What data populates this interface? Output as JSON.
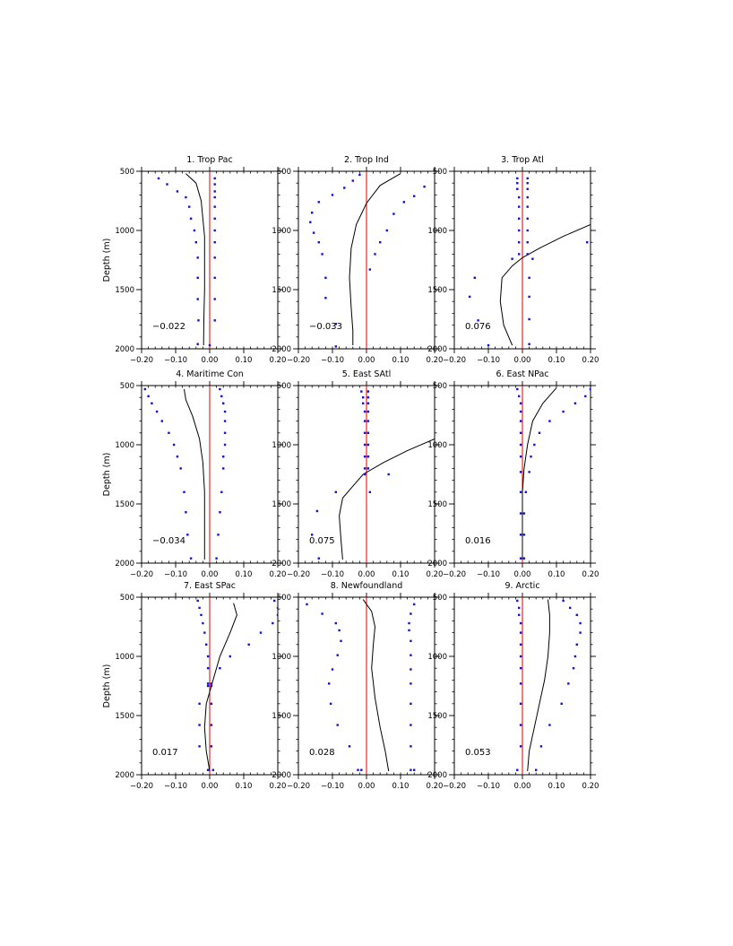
{
  "chart_data": [
    {
      "type": "line",
      "title": "1. Trop Pac",
      "ylabel": "Depth (m)",
      "value_label": "−0.022",
      "xlim": [
        -0.2,
        0.2
      ],
      "ylim": [
        2000,
        500
      ],
      "y_inverted": true,
      "xticks": [
        "−0.20",
        "−0.10",
        "0.00",
        "0.10",
        "0.20"
      ],
      "yticks": [
        "500",
        "1000",
        "1500",
        "2000"
      ],
      "profile": {
        "x": [
          -0.07,
          -0.04,
          -0.025,
          -0.02,
          -0.015,
          -0.015,
          -0.015,
          -0.017,
          -0.018
        ],
        "y": [
          520,
          600,
          750,
          900,
          1050,
          1250,
          1500,
          1750,
          1970
        ]
      },
      "dots_left": {
        "x": [
          -0.15,
          -0.125,
          -0.095,
          -0.07,
          -0.06,
          -0.055,
          -0.045,
          -0.04,
          -0.035,
          -0.035,
          -0.035,
          -0.033
        ],
        "y": [
          560,
          610,
          670,
          720,
          800,
          900,
          1000,
          1100,
          1230,
          1400,
          1580,
          1760
        ]
      },
      "dots_right": {
        "x": [
          0.015,
          0.015,
          0.015,
          0.015,
          0.015,
          0.015,
          0.015,
          0.015,
          0.015,
          0.015,
          0.015,
          0.015
        ],
        "y": [
          560,
          610,
          670,
          720,
          800,
          900,
          1000,
          1100,
          1230,
          1400,
          1580,
          1760
        ]
      },
      "dots_extra": {
        "x": [
          -0.035,
          0.0
        ],
        "y": [
          1960,
          1970
        ]
      }
    },
    {
      "type": "line",
      "title": "2. Trop Ind",
      "ylabel": "",
      "value_label": "−0.033",
      "xlim": [
        -0.2,
        0.2
      ],
      "ylim": [
        2000,
        500
      ],
      "y_inverted": true,
      "xticks": [
        "−0.20",
        "−0.10",
        "0.00",
        "0.10",
        "0.20"
      ],
      "yticks": [
        "500",
        "1000",
        "1500",
        "2000"
      ],
      "profile": {
        "x": [
          0.1,
          0.04,
          0.0,
          -0.03,
          -0.045,
          -0.05,
          -0.045,
          -0.04,
          -0.04
        ],
        "y": [
          520,
          620,
          770,
          950,
          1150,
          1400,
          1650,
          1850,
          1970
        ]
      },
      "dots_left": {
        "x": [
          -0.02,
          -0.04,
          -0.065,
          -0.1,
          -0.14,
          -0.16,
          -0.165,
          -0.155,
          -0.14,
          -0.13,
          -0.12,
          -0.12
        ],
        "y": [
          530,
          580,
          640,
          700,
          760,
          850,
          930,
          1020,
          1100,
          1200,
          1400,
          1570
        ]
      },
      "dots_right": {
        "x": [
          0.17,
          0.14,
          0.11,
          0.08,
          0.06,
          0.04,
          0.025,
          0.01
        ],
        "y": [
          630,
          710,
          760,
          860,
          1000,
          1100,
          1200,
          1330
        ]
      },
      "dots_extra": {
        "x": [
          -0.09,
          -0.09
        ],
        "y": [
          1790,
          1980
        ]
      }
    },
    {
      "type": "line",
      "title": "3. Trop Atl",
      "ylabel": "",
      "value_label": "0.076",
      "xlim": [
        -0.2,
        0.2
      ],
      "ylim": [
        2000,
        500
      ],
      "y_inverted": true,
      "xticks": [
        "−0.20",
        "−0.10",
        "0.00",
        "0.10",
        "0.20"
      ],
      "yticks": [
        "500",
        "1000",
        "1500",
        "2000"
      ],
      "profile": {
        "x": [
          0.2,
          0.12,
          0.05,
          0.0,
          -0.03,
          -0.06,
          -0.065,
          -0.055,
          -0.03
        ],
        "y": [
          950,
          1050,
          1150,
          1230,
          1300,
          1400,
          1600,
          1800,
          1970
        ]
      },
      "dots_left": {
        "x": [
          -0.015,
          -0.015,
          -0.015,
          -0.01,
          -0.01,
          -0.01,
          -0.01,
          -0.01,
          -0.01,
          -0.03,
          -0.14,
          -0.155,
          -0.1
        ],
        "y": [
          560,
          600,
          650,
          720,
          800,
          900,
          1000,
          1100,
          1200,
          1240,
          1400,
          1560,
          1970
        ]
      },
      "dots_right": {
        "x": [
          0.015,
          0.015,
          0.015,
          0.015,
          0.015,
          0.015,
          0.015,
          0.015,
          0.015,
          0.03,
          0.02,
          0.02,
          0.02,
          0.02
        ],
        "y": [
          560,
          600,
          650,
          720,
          800,
          900,
          1000,
          1100,
          1200,
          1240,
          1400,
          1560,
          1750,
          1960
        ]
      },
      "dots_extra": {
        "x": [
          0.19,
          -0.13
        ],
        "y": [
          1100,
          1760
        ]
      }
    },
    {
      "type": "line",
      "title": "4. Maritime Con",
      "ylabel": "Depth (m)",
      "value_label": "−0.034",
      "xlim": [
        -0.2,
        0.2
      ],
      "ylim": [
        2000,
        500
      ],
      "y_inverted": true,
      "xticks": [
        "−0.20",
        "−0.10",
        "0.00",
        "0.10",
        "0.20"
      ],
      "yticks": [
        "500",
        "1000",
        "1500",
        "2000"
      ],
      "profile": {
        "x": [
          -0.075,
          -0.07,
          -0.05,
          -0.03,
          -0.02,
          -0.015,
          -0.015,
          -0.015,
          -0.015
        ],
        "y": [
          530,
          620,
          760,
          950,
          1150,
          1400,
          1600,
          1800,
          1970
        ]
      },
      "dots_left": {
        "x": [
          -0.19,
          -0.18,
          -0.17,
          -0.155,
          -0.14,
          -0.12,
          -0.105,
          -0.095,
          -0.085,
          -0.075,
          -0.07,
          -0.065
        ],
        "y": [
          530,
          590,
          650,
          720,
          800,
          900,
          1000,
          1100,
          1200,
          1400,
          1570,
          1760
        ]
      },
      "dots_right": {
        "x": [
          0.03,
          0.035,
          0.04,
          0.045,
          0.045,
          0.045,
          0.045,
          0.04,
          0.04,
          0.035,
          0.03,
          0.025
        ],
        "y": [
          530,
          590,
          650,
          720,
          800,
          900,
          1000,
          1100,
          1200,
          1400,
          1570,
          1760
        ]
      },
      "dots_extra": {
        "x": [
          -0.055,
          0.02
        ],
        "y": [
          1960,
          1960
        ]
      }
    },
    {
      "type": "line",
      "title": "5. East SAtl",
      "ylabel": "",
      "value_label": "0.075",
      "xlim": [
        -0.2,
        0.2
      ],
      "ylim": [
        2000,
        500
      ],
      "y_inverted": true,
      "xticks": [
        "−0.20",
        "−0.10",
        "0.00",
        "0.10",
        "0.20"
      ],
      "yticks": [
        "500",
        "1000",
        "1500",
        "2000"
      ],
      "profile": {
        "x": [
          0.2,
          0.12,
          0.05,
          -0.01,
          -0.04,
          -0.07,
          -0.08,
          -0.075,
          -0.07
        ],
        "y": [
          950,
          1050,
          1150,
          1250,
          1350,
          1450,
          1600,
          1800,
          1970
        ]
      },
      "dots_left": {
        "x": [
          -0.015,
          -0.01,
          -0.01,
          -0.005,
          -0.005,
          -0.005,
          -0.005,
          -0.005,
          -0.005,
          -0.005,
          -0.09,
          -0.145,
          -0.14
        ],
        "y": [
          550,
          600,
          650,
          720,
          800,
          900,
          1000,
          1100,
          1200,
          1250,
          1400,
          1560,
          1960
        ]
      },
      "dots_right": {
        "x": [
          0.005,
          0.005,
          0.005,
          0.005,
          0.005,
          0.005,
          0.005,
          0.005,
          0.005,
          0.065,
          0.01
        ],
        "y": [
          550,
          600,
          650,
          720,
          800,
          900,
          1000,
          1100,
          1200,
          1250,
          1400
        ]
      },
      "dots_extra": {
        "x": [
          -0.16
        ],
        "y": [
          1760
        ]
      }
    },
    {
      "type": "line",
      "title": "6. East NPac",
      "ylabel": "",
      "value_label": "0.016",
      "xlim": [
        -0.2,
        0.2
      ],
      "ylim": [
        2000,
        500
      ],
      "y_inverted": true,
      "xticks": [
        "−0.20",
        "−0.10",
        "0.00",
        "0.10",
        "0.20"
      ],
      "yticks": [
        "500",
        "1000",
        "1500",
        "2000"
      ],
      "profile": {
        "x": [
          0.1,
          0.06,
          0.03,
          0.015,
          0.005,
          0.0,
          0.0,
          0.0,
          0.0
        ],
        "y": [
          520,
          650,
          800,
          1000,
          1200,
          1400,
          1600,
          1800,
          1970
        ]
      },
      "dots_left": {
        "x": [
          -0.015,
          -0.01,
          -0.005,
          -0.005,
          -0.005,
          -0.005,
          -0.005,
          -0.005,
          -0.005,
          -0.005,
          -0.005,
          -0.005,
          -0.005
        ],
        "y": [
          530,
          590,
          650,
          720,
          800,
          900,
          1000,
          1100,
          1230,
          1400,
          1580,
          1760,
          1960
        ]
      },
      "dots_right": {
        "x": [
          0.2,
          0.185,
          0.155,
          0.12,
          0.08,
          0.05,
          0.035,
          0.025,
          0.02,
          0.01,
          0.005,
          0.005,
          0.005
        ],
        "y": [
          530,
          590,
          650,
          720,
          800,
          900,
          1000,
          1100,
          1230,
          1400,
          1580,
          1760,
          1960
        ]
      },
      "dots_extra": {
        "x": [],
        "y": []
      }
    },
    {
      "type": "line",
      "title": "7. East SPac",
      "ylabel": "Depth (m)",
      "value_label": "0.017",
      "xlim": [
        -0.2,
        0.2
      ],
      "ylim": [
        2000,
        500
      ],
      "y_inverted": true,
      "xticks": [
        "−0.20",
        "−0.10",
        "0.00",
        "0.10",
        "0.20"
      ],
      "yticks": [
        "500",
        "1000",
        "1500",
        "2000"
      ],
      "profile": {
        "x": [
          0.07,
          0.08,
          0.06,
          0.03,
          0.01,
          -0.01,
          -0.015,
          -0.01,
          0.0
        ],
        "y": [
          550,
          650,
          800,
          1000,
          1200,
          1400,
          1600,
          1800,
          1970
        ]
      },
      "dots_left": {
        "x": [
          -0.035,
          -0.03,
          -0.025,
          -0.02,
          -0.015,
          -0.01,
          -0.005,
          -0.005,
          -0.005,
          -0.005,
          -0.03,
          -0.03,
          -0.03,
          -0.005
        ],
        "y": [
          530,
          590,
          650,
          720,
          800,
          900,
          1000,
          1100,
          1230,
          1250,
          1400,
          1580,
          1760,
          1960
        ]
      },
      "dots_right": {
        "x": [
          0.19,
          0.2,
          0.2,
          0.185,
          0.15,
          0.115,
          0.06,
          0.03,
          0.005,
          0.005,
          0.005,
          0.005,
          0.005,
          0.01
        ],
        "y": [
          530,
          590,
          650,
          720,
          800,
          900,
          1000,
          1100,
          1230,
          1250,
          1400,
          1580,
          1760,
          1960
        ]
      },
      "dots_extra": {
        "x": [],
        "y": []
      }
    },
    {
      "type": "line",
      "title": "8. Newfoundland",
      "ylabel": "",
      "value_label": "0.028",
      "xlim": [
        -0.2,
        0.2
      ],
      "ylim": [
        2000,
        500
      ],
      "y_inverted": true,
      "xticks": [
        "−0.20",
        "−0.10",
        "0.00",
        "0.10",
        "0.20"
      ],
      "yticks": [
        "500",
        "1000",
        "1500",
        "2000"
      ],
      "profile": {
        "x": [
          -0.01,
          0.015,
          0.025,
          0.02,
          0.015,
          0.025,
          0.04,
          0.055,
          0.065
        ],
        "y": [
          520,
          620,
          750,
          900,
          1100,
          1350,
          1600,
          1800,
          1970
        ]
      },
      "dots_left": {
        "x": [
          -0.175,
          -0.13,
          -0.09,
          -0.08,
          -0.075,
          -0.085,
          -0.1,
          -0.11,
          -0.105,
          -0.085,
          -0.05,
          -0.025,
          -0.015
        ],
        "y": [
          560,
          640,
          720,
          780,
          870,
          990,
          1110,
          1230,
          1400,
          1580,
          1760,
          1960,
          1960
        ]
      },
      "dots_right": {
        "x": [
          0.14,
          0.13,
          0.125,
          0.125,
          0.13,
          0.13,
          0.13,
          0.13,
          0.13,
          0.13,
          0.13,
          0.13,
          0.14
        ],
        "y": [
          560,
          640,
          720,
          780,
          870,
          990,
          1110,
          1230,
          1400,
          1580,
          1760,
          1960,
          1960
        ]
      },
      "dots_extra": {
        "x": [],
        "y": []
      }
    },
    {
      "type": "line",
      "title": "9. Arctic",
      "ylabel": "",
      "value_label": "0.053",
      "xlim": [
        -0.2,
        0.2
      ],
      "ylim": [
        2000,
        500
      ],
      "y_inverted": true,
      "xticks": [
        "−0.20",
        "−0.10",
        "0.00",
        "0.10",
        "0.20"
      ],
      "yticks": [
        "500",
        "1000",
        "1500",
        "2000"
      ],
      "profile": {
        "x": [
          0.075,
          0.08,
          0.08,
          0.075,
          0.065,
          0.05,
          0.035,
          0.02,
          0.015
        ],
        "y": [
          520,
          650,
          800,
          1000,
          1200,
          1400,
          1600,
          1800,
          1970
        ]
      },
      "dots_left": {
        "x": [
          -0.015,
          -0.01,
          -0.01,
          -0.005,
          -0.005,
          -0.005,
          -0.005,
          -0.005,
          -0.005,
          -0.005,
          -0.005,
          -0.005,
          -0.015
        ],
        "y": [
          530,
          590,
          650,
          720,
          800,
          900,
          1000,
          1100,
          1230,
          1400,
          1580,
          1760,
          1960
        ]
      },
      "dots_right": {
        "x": [
          0.12,
          0.14,
          0.16,
          0.17,
          0.17,
          0.16,
          0.155,
          0.15,
          0.135,
          0.115,
          0.08,
          0.055,
          0.04
        ],
        "y": [
          530,
          590,
          650,
          720,
          800,
          900,
          1000,
          1100,
          1230,
          1400,
          1580,
          1760,
          1960
        ]
      },
      "dots_extra": {
        "x": [],
        "y": []
      }
    }
  ]
}
